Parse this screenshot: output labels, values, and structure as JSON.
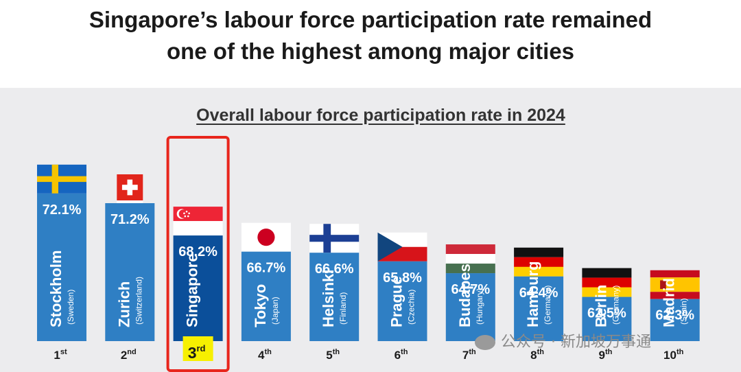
{
  "title_line1": "Singapore’s labour force participation rate remained",
  "title_line2": "one of the highest among major cities",
  "watermark": "公众号 · 新加坡万事通",
  "colors": {
    "bar": "#2f7fc4",
    "highlight_bar": "#0b4f9a",
    "highlight_box": "#e8251c",
    "rank_badge": "#f7f000"
  },
  "chart_data": {
    "type": "bar",
    "title": "Overall labour force participation rate in 2024",
    "categories": [
      "Stockholm",
      "Zurich",
      "Singapore",
      "Tokyo",
      "Helsinki",
      "Prague",
      "Budapest",
      "Hamburg",
      "Berlin",
      "Madrid"
    ],
    "countries": [
      "(Sweden)",
      "(Switzerland)",
      "",
      "(Japan)",
      "(Finland)",
      "(Czechia)",
      "(Hungary)",
      "(Germany)",
      "(Germany)",
      "(Spain)"
    ],
    "values": [
      72.1,
      71.2,
      68.2,
      66.7,
      66.6,
      65.8,
      64.7,
      64.4,
      62.5,
      62.3
    ],
    "value_labels": [
      "72.1%",
      "71.2%",
      "68.2%",
      "66.7%",
      "66.6%",
      "65.8%",
      "64.7%",
      "64.4%",
      "62.5%",
      "62.3%"
    ],
    "ranks": [
      {
        "num": "1",
        "suf": "st"
      },
      {
        "num": "2",
        "suf": "nd"
      },
      {
        "num": "3",
        "suf": "rd"
      },
      {
        "num": "4",
        "suf": "th"
      },
      {
        "num": "5",
        "suf": "th"
      },
      {
        "num": "6",
        "suf": "th"
      },
      {
        "num": "7",
        "suf": "th"
      },
      {
        "num": "8",
        "suf": "th"
      },
      {
        "num": "9",
        "suf": "th"
      },
      {
        "num": "10",
        "suf": "th"
      }
    ],
    "flags": [
      "sweden",
      "switzerland",
      "singapore",
      "japan",
      "finland",
      "czechia",
      "hungary",
      "germany",
      "germany",
      "spain"
    ],
    "highlight": "Singapore",
    "unit": "%"
  }
}
